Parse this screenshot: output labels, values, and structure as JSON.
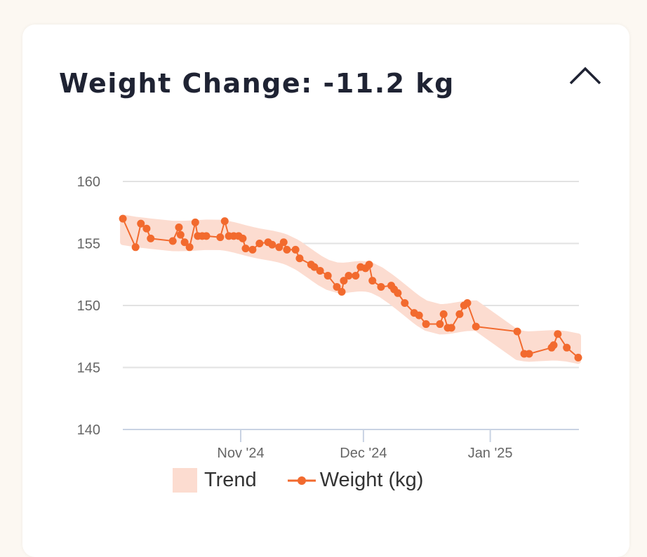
{
  "header": {
    "title": "Weight Change: -11.2 kg",
    "collapse_icon": "chevron-up-icon"
  },
  "colors": {
    "line": "#f26a2e",
    "band": "#fcdcd0",
    "grid": "#e2e2e2",
    "axis": "#c9d3e3",
    "title": "#1f2333"
  },
  "chart_data": {
    "type": "line",
    "title": "Weight Change: -11.2 kg",
    "x_unit": "days since Oct 1 2024",
    "xlim": [
      2,
      114
    ],
    "ylim": [
      140,
      160
    ],
    "yticks": [
      {
        "v": 160,
        "label": "160"
      },
      {
        "v": 155,
        "label": "155"
      },
      {
        "v": 150,
        "label": "150"
      },
      {
        "v": 145,
        "label": "145"
      },
      {
        "v": 140,
        "label": "140"
      }
    ],
    "xticks": [
      {
        "v": 31,
        "label": "Nov '24"
      },
      {
        "v": 61,
        "label": "Dec '24"
      },
      {
        "v": 92,
        "label": "Jan '25"
      }
    ],
    "legend": {
      "position": "bottom",
      "items": [
        {
          "label": "Trend"
        },
        {
          "label": "Weight (kg)"
        }
      ]
    },
    "trend_band_halfwidth_kg": 1.0,
    "series": [
      {
        "name": "Weight (kg)",
        "points": [
          [
            2.2,
            157.0
          ],
          [
            5.3,
            154.7
          ],
          [
            6.6,
            156.6
          ],
          [
            8.0,
            156.2
          ],
          [
            9.0,
            155.4
          ],
          [
            14.4,
            155.2
          ],
          [
            15.9,
            156.3
          ],
          [
            16.3,
            155.7
          ],
          [
            17.3,
            155.1
          ],
          [
            18.5,
            154.7
          ],
          [
            19.9,
            156.7
          ],
          [
            20.5,
            155.6
          ],
          [
            21.6,
            155.6
          ],
          [
            22.6,
            155.6
          ],
          [
            26.0,
            155.5
          ],
          [
            27.1,
            156.8
          ],
          [
            28.1,
            155.6
          ],
          [
            29.3,
            155.6
          ],
          [
            30.5,
            155.6
          ],
          [
            31.5,
            155.4
          ],
          [
            32.2,
            154.6
          ],
          [
            33.9,
            154.5
          ],
          [
            35.6,
            155.0
          ],
          [
            37.7,
            155.1
          ],
          [
            38.7,
            154.9
          ],
          [
            40.4,
            154.7
          ],
          [
            41.5,
            155.1
          ],
          [
            42.3,
            154.5
          ],
          [
            44.4,
            154.5
          ],
          [
            45.4,
            153.8
          ],
          [
            48.2,
            153.3
          ],
          [
            49.0,
            153.1
          ],
          [
            50.4,
            152.8
          ],
          [
            52.3,
            152.4
          ],
          [
            54.5,
            151.5
          ],
          [
            55.7,
            151.1
          ],
          [
            56.2,
            152.0
          ],
          [
            57.4,
            152.4
          ],
          [
            59.1,
            152.4
          ],
          [
            60.3,
            153.1
          ],
          [
            61.5,
            153.0
          ],
          [
            62.4,
            153.3
          ],
          [
            63.2,
            152.0
          ],
          [
            65.3,
            151.5
          ],
          [
            67.8,
            151.6
          ],
          [
            68.5,
            151.3
          ],
          [
            69.4,
            151.0
          ],
          [
            71.1,
            150.2
          ],
          [
            73.4,
            149.4
          ],
          [
            74.6,
            149.2
          ],
          [
            76.3,
            148.5
          ],
          [
            79.7,
            148.5
          ],
          [
            80.6,
            149.3
          ],
          [
            81.6,
            148.2
          ],
          [
            82.5,
            148.2
          ],
          [
            84.5,
            149.3
          ],
          [
            85.6,
            150.0
          ],
          [
            86.4,
            150.2
          ],
          [
            88.5,
            148.3
          ],
          [
            98.6,
            147.9
          ],
          [
            100.3,
            146.1
          ],
          [
            101.5,
            146.1
          ],
          [
            107.0,
            146.6
          ],
          [
            107.5,
            146.8
          ],
          [
            108.5,
            147.7
          ],
          [
            110.7,
            146.6
          ],
          [
            113.5,
            145.8
          ]
        ]
      }
    ]
  }
}
